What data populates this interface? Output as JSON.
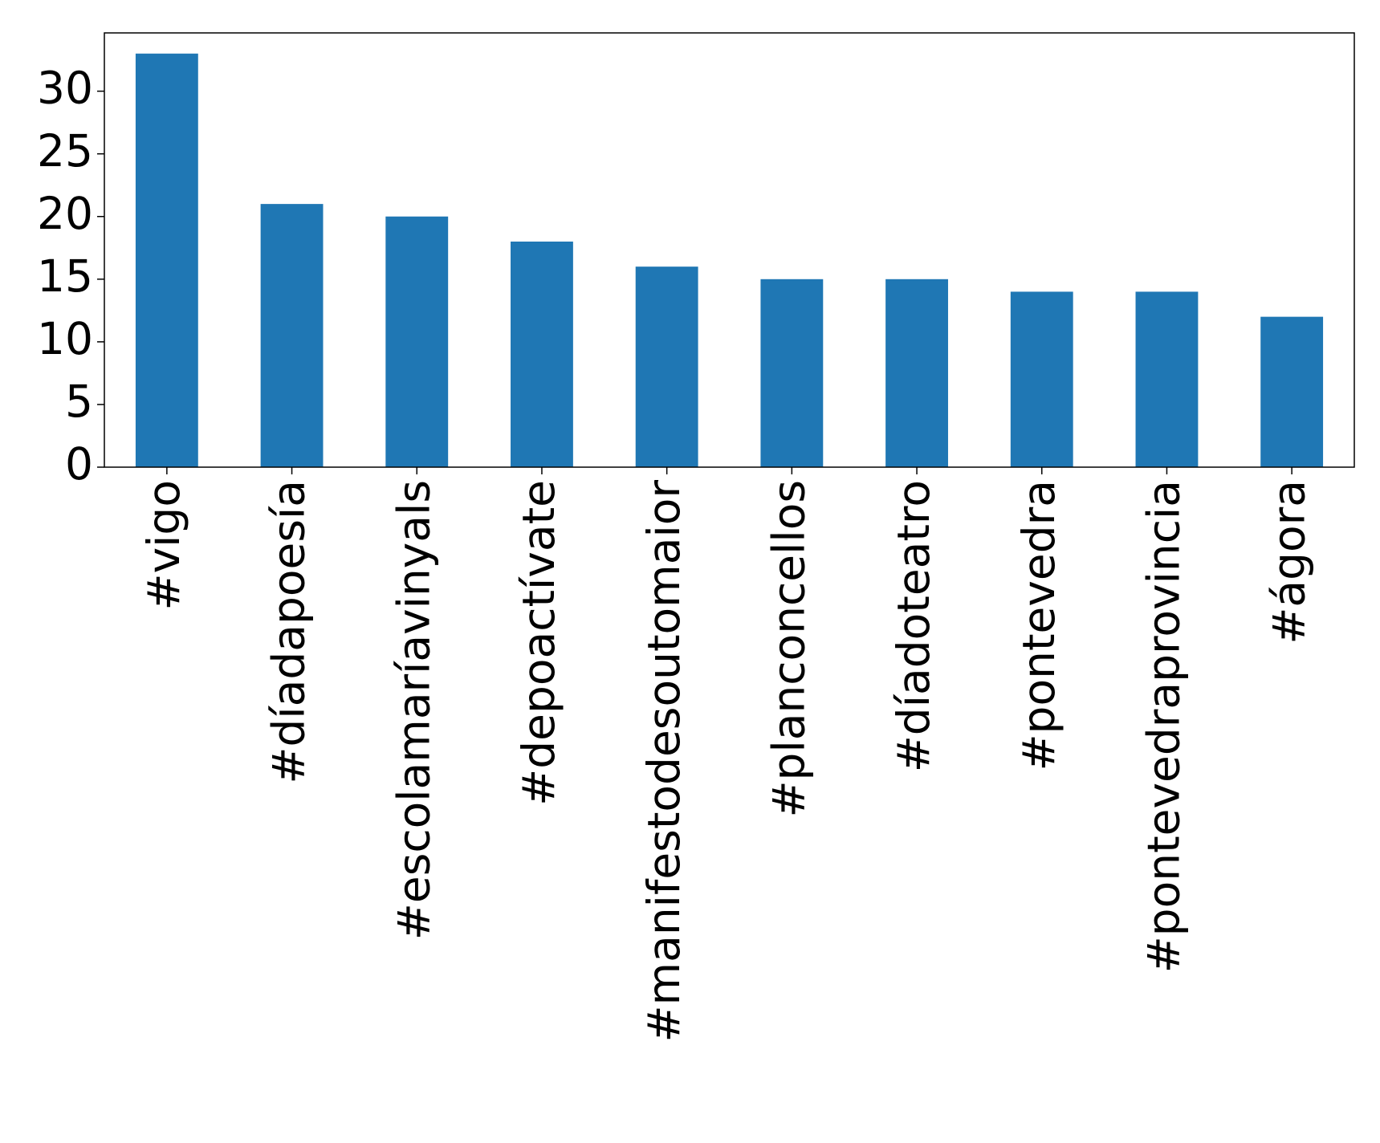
{
  "chart_data": {
    "type": "bar",
    "categories": [
      "#vigo",
      "#díadapoesía",
      "#escolamaríavinyals",
      "#depoactívate",
      "#manifestodesoutomaior",
      "#planconcellos",
      "#díadoteatro",
      "#pontevedra",
      "#pontevedraprovincia",
      "#ágora"
    ],
    "values": [
      33,
      21,
      20,
      18,
      16,
      15,
      15,
      14,
      14,
      12
    ],
    "color": "#1f77b4",
    "ylim": [
      0,
      34.65
    ],
    "yticks": [
      0,
      5,
      10,
      15,
      20,
      25,
      30
    ],
    "grid": false
  }
}
